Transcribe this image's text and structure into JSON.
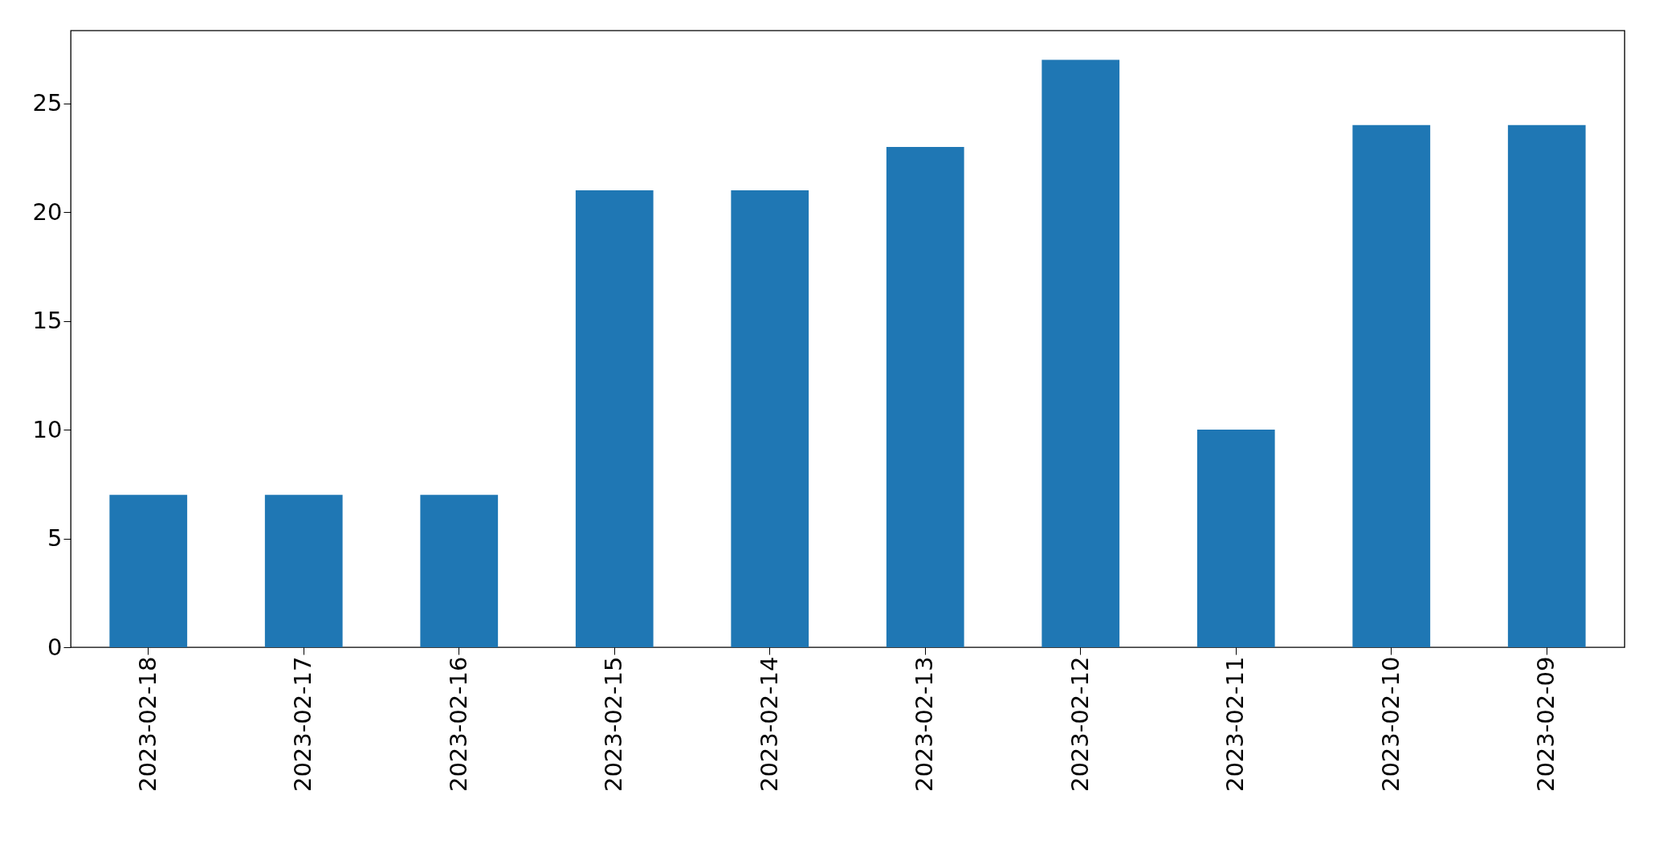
{
  "chart_data": {
    "type": "bar",
    "categories": [
      "2023-02-18",
      "2023-02-17",
      "2023-02-16",
      "2023-02-15",
      "2023-02-14",
      "2023-02-13",
      "2023-02-12",
      "2023-02-11",
      "2023-02-10",
      "2023-02-09"
    ],
    "values": [
      7,
      7,
      7,
      21,
      21,
      23,
      27,
      10,
      24,
      24
    ],
    "color": "#1f77b4",
    "ylim": [
      0,
      28.35
    ],
    "yticks": [
      0,
      5,
      10,
      15,
      20,
      25
    ],
    "grid": false
  }
}
